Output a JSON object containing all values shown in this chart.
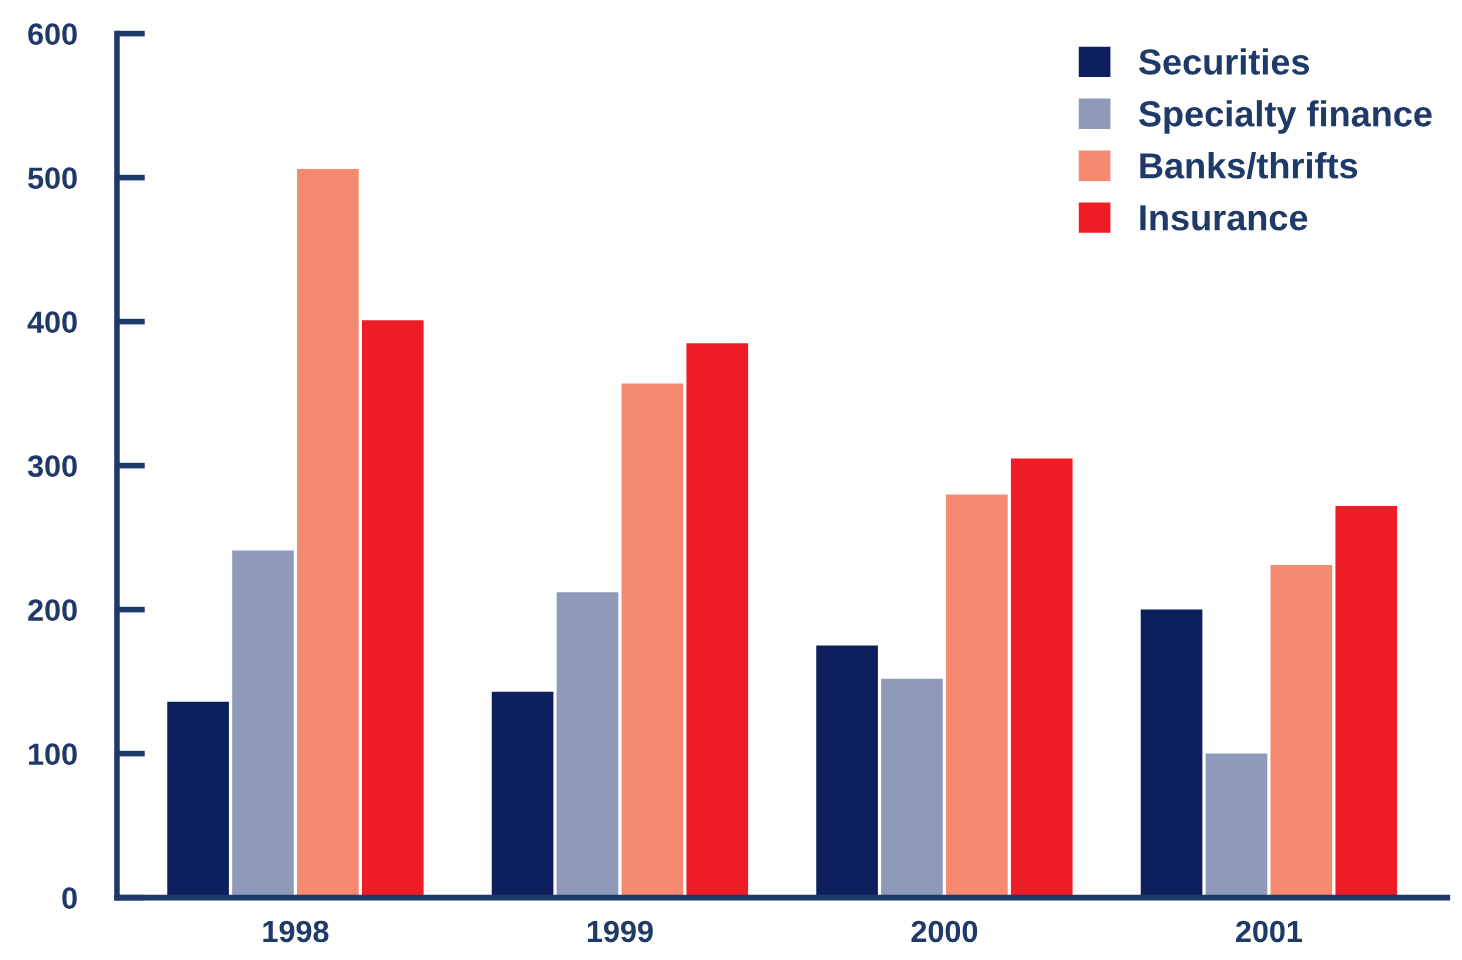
{
  "chart_data": {
    "type": "bar",
    "categories": [
      "1998",
      "1999",
      "2000",
      "2001"
    ],
    "series": [
      {
        "name": "Securities",
        "color": "#0d1f5c",
        "values": [
          136,
          143,
          175,
          200
        ]
      },
      {
        "name": "Specialty finance",
        "color": "#8f9ab8",
        "values": [
          241,
          212,
          152,
          100
        ]
      },
      {
        "name": "Banks/thrifts",
        "color": "#f58a70",
        "values": [
          506,
          357,
          280,
          231
        ]
      },
      {
        "name": "Insurance",
        "color": "#ee1c25",
        "values": [
          401,
          385,
          305,
          272
        ]
      }
    ],
    "ylim": [
      0,
      600
    ],
    "yticks": [
      0,
      100,
      200,
      300,
      400,
      500,
      600
    ],
    "grid": false,
    "legend": "top right"
  }
}
